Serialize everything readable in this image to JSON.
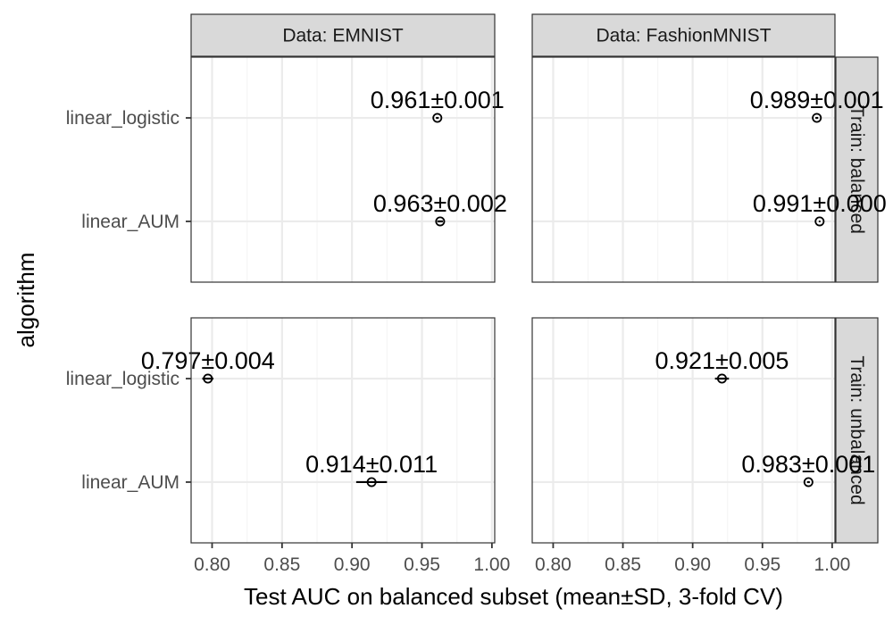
{
  "chart_data": {
    "type": "scatter",
    "subtype": "faceted point-range (mean ± SD)",
    "xlabel": "Test AUC on balanced subset (mean±SD, 3-fold CV)",
    "ylabel": "algorithm",
    "xlim": [
      0.785,
      1.002
    ],
    "x_ticks": [
      0.8,
      0.85,
      0.9,
      0.95,
      1.0
    ],
    "x_tick_labels": [
      "0.80",
      "0.85",
      "0.90",
      "0.95",
      "1.00"
    ],
    "y_categories": [
      "linear_logistic",
      "linear_AUM"
    ],
    "grid": true,
    "theme": "bw",
    "colors": {
      "strip_fill": "#d9d9d9",
      "panel_border": "#333333",
      "grid_major": "#ebebeb",
      "grid_minor": "#f5f5f5",
      "point": "#000000"
    },
    "column_facets": [
      "Data: EMNIST",
      "Data: FashionMNIST"
    ],
    "row_facets": [
      "Train: balanced",
      "Train: unbalanced"
    ],
    "panels": [
      {
        "column": "Data: EMNIST",
        "row": "Train: balanced",
        "points": [
          {
            "algorithm": "linear_logistic",
            "mean": 0.961,
            "sd": 0.001,
            "label": "0.961±0.001"
          },
          {
            "algorithm": "linear_AUM",
            "mean": 0.963,
            "sd": 0.002,
            "label": "0.963±0.002"
          }
        ]
      },
      {
        "column": "Data: FashionMNIST",
        "row": "Train: balanced",
        "points": [
          {
            "algorithm": "linear_logistic",
            "mean": 0.989,
            "sd": 0.001,
            "label": "0.989±0.001"
          },
          {
            "algorithm": "linear_AUM",
            "mean": 0.991,
            "sd": 0.0,
            "label": "0.991±0.000"
          }
        ]
      },
      {
        "column": "Data: EMNIST",
        "row": "Train: unbalanced",
        "points": [
          {
            "algorithm": "linear_logistic",
            "mean": 0.797,
            "sd": 0.004,
            "label": "0.797±0.004"
          },
          {
            "algorithm": "linear_AUM",
            "mean": 0.914,
            "sd": 0.011,
            "label": "0.914±0.011"
          }
        ]
      },
      {
        "column": "Data: FashionMNIST",
        "row": "Train: unbalanced",
        "points": [
          {
            "algorithm": "linear_logistic",
            "mean": 0.921,
            "sd": 0.005,
            "label": "0.921±0.005"
          },
          {
            "algorithm": "linear_AUM",
            "mean": 0.983,
            "sd": 0.001,
            "label": "0.983±0.001"
          }
        ]
      }
    ]
  }
}
